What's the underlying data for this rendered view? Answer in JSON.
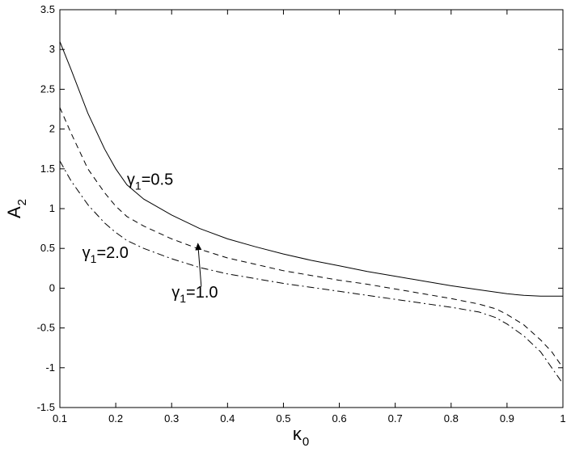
{
  "chart_data": {
    "type": "line",
    "xlabel": "κ",
    "xlabel_sub": "0",
    "ylabel": "A",
    "ylabel_sub": "2",
    "xlim": [
      0.1,
      1.0
    ],
    "ylim": [
      -1.5,
      3.5
    ],
    "xticks": [
      0.1,
      0.2,
      0.3,
      0.4,
      0.5,
      0.6,
      0.7,
      0.8,
      0.9,
      1.0
    ],
    "xtick_labels": [
      "0.1",
      "0.2",
      "0.3",
      "0.4",
      "0.5",
      "0.6",
      "0.7",
      "0.8",
      "0.9",
      "1"
    ],
    "yticks": [
      -1.5,
      -1.0,
      -0.5,
      0,
      0.5,
      1.0,
      1.5,
      2.0,
      2.5,
      3.0,
      3.5
    ],
    "ytick_labels": [
      "-1.5",
      "-1",
      "-0.5",
      "0",
      "0.5",
      "1",
      "1.5",
      "2",
      "2.5",
      "3",
      "3.5"
    ],
    "grid": false,
    "series": [
      {
        "style": "solid",
        "x": [
          0.1,
          0.12,
          0.15,
          0.18,
          0.2,
          0.22,
          0.25,
          0.3,
          0.35,
          0.4,
          0.45,
          0.5,
          0.55,
          0.6,
          0.65,
          0.7,
          0.75,
          0.8,
          0.85,
          0.9,
          0.93,
          0.96,
          0.98,
          1.0
        ],
        "y": [
          3.1,
          2.75,
          2.2,
          1.75,
          1.5,
          1.3,
          1.12,
          0.92,
          0.75,
          0.62,
          0.52,
          0.43,
          0.35,
          0.28,
          0.21,
          0.15,
          0.09,
          0.03,
          -0.02,
          -0.07,
          -0.09,
          -0.1,
          -0.1,
          -0.1
        ]
      },
      {
        "style": "dashed",
        "x": [
          0.1,
          0.12,
          0.15,
          0.18,
          0.2,
          0.22,
          0.25,
          0.3,
          0.35,
          0.4,
          0.45,
          0.5,
          0.55,
          0.6,
          0.65,
          0.7,
          0.75,
          0.8,
          0.85,
          0.88,
          0.9,
          0.93,
          0.96,
          0.98,
          1.0
        ],
        "y": [
          2.27,
          1.95,
          1.5,
          1.2,
          1.03,
          0.9,
          0.78,
          0.62,
          0.49,
          0.38,
          0.3,
          0.22,
          0.16,
          0.1,
          0.05,
          -0.01,
          -0.07,
          -0.13,
          -0.2,
          -0.26,
          -0.33,
          -0.46,
          -0.65,
          -0.8,
          -1.0
        ]
      },
      {
        "style": "dashdot",
        "x": [
          0.1,
          0.12,
          0.15,
          0.18,
          0.2,
          0.22,
          0.25,
          0.3,
          0.35,
          0.4,
          0.45,
          0.5,
          0.55,
          0.6,
          0.65,
          0.7,
          0.75,
          0.8,
          0.85,
          0.88,
          0.9,
          0.93,
          0.96,
          0.98,
          1.0
        ],
        "y": [
          1.6,
          1.35,
          1.05,
          0.82,
          0.7,
          0.6,
          0.5,
          0.37,
          0.26,
          0.18,
          0.12,
          0.06,
          0.01,
          -0.04,
          -0.09,
          -0.14,
          -0.19,
          -0.24,
          -0.3,
          -0.37,
          -0.45,
          -0.6,
          -0.8,
          -1.0,
          -1.2
        ]
      }
    ],
    "annotations": [
      {
        "name": "gamma",
        "sub": "1",
        "value": "=0.5",
        "x": 0.22,
        "y": 1.3
      },
      {
        "name": "gamma",
        "sub": "1",
        "value": "=2.0",
        "x": 0.14,
        "y": 0.38
      },
      {
        "name": "gamma",
        "sub": "1",
        "value": "=1.0",
        "x": 0.3,
        "y": -0.12
      }
    ],
    "arrow": {
      "from": [
        0.353,
        0.02
      ],
      "to": [
        0.347,
        0.56
      ]
    }
  },
  "glyphs": {
    "gamma": "γ"
  }
}
